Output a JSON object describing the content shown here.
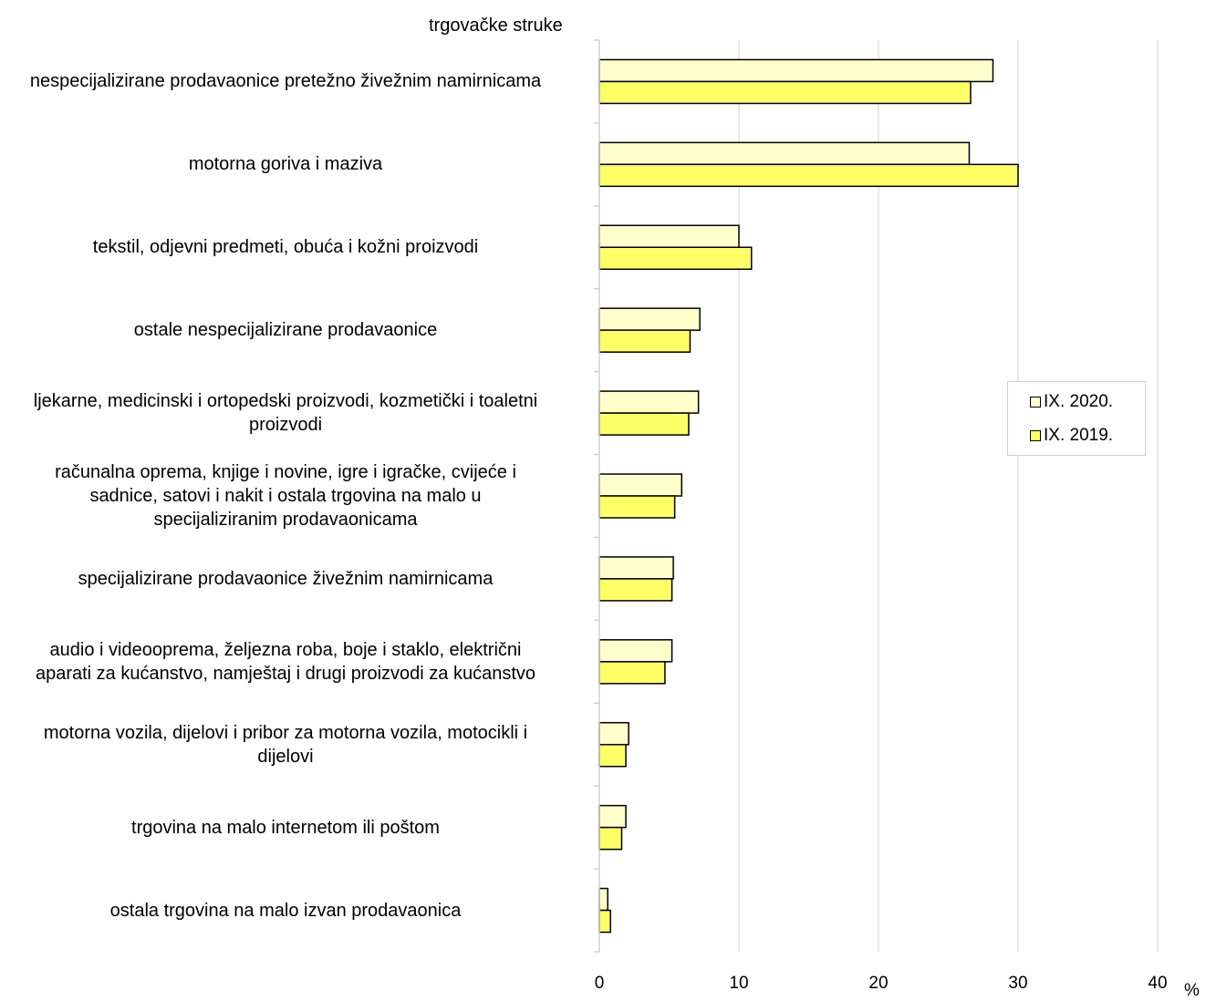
{
  "chart_data": {
    "type": "bar",
    "orientation": "horizontal",
    "ylabel": "trgovačke struke",
    "unit": "%",
    "xlim": [
      0,
      40
    ],
    "xticks": [
      0,
      10,
      20,
      30,
      40
    ],
    "grid": true,
    "legend_position": "right",
    "categories": [
      "nespecijalizirane prodavaonice pretežno živežnim namirnicama",
      "motorna goriva i maziva",
      "tekstil, odjevni predmeti, obuća i kožni proizvodi",
      "ostale nespecijalizirane prodavaonice",
      "ljekarne, medicinski i ortopedski proizvodi, kozmetički i toaletni proizvodi",
      "računalna oprema, knjige i novine, igre i igračke, cvijeće i sadnice,  satovi i nakit i ostala trgovina na malo u specijaliziranim prodavaonicama",
      "specijalizirane prodavaonice živežnim namirnicama",
      "audio i videooprema, željezna roba, boje i staklo, električni aparati za kućanstvo, namještaj i drugi proizvodi za kućanstvo",
      "motorna vozila, dijelovi i pribor za motorna vozila, motocikli i dijelovi",
      "trgovina na malo internetom ili poštom",
      "ostala trgovina na malo izvan prodavaonica"
    ],
    "label_lines": [
      [
        "nespecijalizirane prodavaonice pretežno živežnim namirnicama"
      ],
      [
        "motorna goriva i maziva"
      ],
      [
        "tekstil, odjevni predmeti, obuća i kožni proizvodi"
      ],
      [
        "ostale nespecijalizirane prodavaonice"
      ],
      [
        "ljekarne, medicinski i ortopedski proizvodi, kozmetički i toaletni",
        "proizvodi"
      ],
      [
        "računalna oprema, knjige i novine, igre i igračke, cvijeće i",
        "sadnice,  satovi i nakit i ostala trgovina na malo u",
        "specijaliziranim prodavaonicama"
      ],
      [
        "specijalizirane prodavaonice živežnim namirnicama"
      ],
      [
        "audio i videooprema, željezna roba, boje i staklo, električni",
        "aparati za kućanstvo, namještaj i drugi proizvodi za kućanstvo"
      ],
      [
        "motorna vozila, dijelovi i pribor za motorna vozila, motocikli i",
        "dijelovi"
      ],
      [
        "trgovina na malo internetom ili poštom"
      ],
      [
        "ostala trgovina na malo izvan prodavaonica"
      ]
    ],
    "series": [
      {
        "name": "IX. 2020.",
        "color": "#ffffcc",
        "values": [
          28.2,
          26.5,
          10.0,
          7.2,
          7.1,
          5.9,
          5.3,
          5.2,
          2.1,
          1.9,
          0.6
        ]
      },
      {
        "name": "IX. 2019.",
        "color": "#ffff66",
        "values": [
          26.6,
          30.0,
          10.9,
          6.5,
          6.4,
          5.4,
          5.2,
          4.7,
          1.9,
          1.6,
          0.8
        ]
      }
    ]
  }
}
